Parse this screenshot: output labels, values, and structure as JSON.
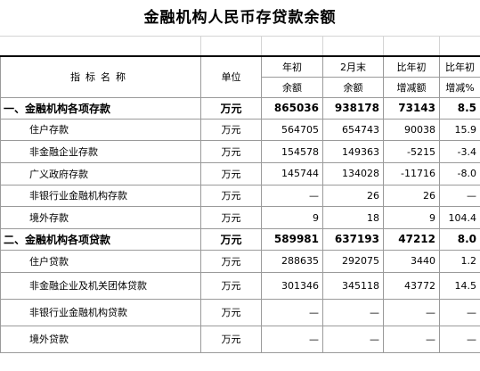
{
  "title": "金融机构人民币存贷款余额",
  "header": {
    "name": "指标名称",
    "unit": "单位",
    "col1_line1": "年初",
    "col1_line2": "余额",
    "col2_line1": "2月末",
    "col2_line2": "余额",
    "col3_line1": "比年初",
    "col3_line2": "增减额",
    "col4_line1": "比年初",
    "col4_line2": "增减%"
  },
  "rows": [
    {
      "name": "一、金融机构各项存款",
      "unit": "万元",
      "v1": "865036",
      "v2": "938178",
      "v3": "73143",
      "v4": "8.5",
      "kind": "sec"
    },
    {
      "name": "住户存款",
      "unit": "万元",
      "v1": "564705",
      "v2": "654743",
      "v3": "90038",
      "v4": "15.9",
      "kind": "sub"
    },
    {
      "name": "非金融企业存款",
      "unit": "万元",
      "v1": "154578",
      "v2": "149363",
      "v3": "-5215",
      "v4": "-3.4",
      "kind": "sub"
    },
    {
      "name": "广义政府存款",
      "unit": "万元",
      "v1": "145744",
      "v2": "134028",
      "v3": "-11716",
      "v4": "-8.0",
      "kind": "sub"
    },
    {
      "name": "非银行业金融机构存款",
      "unit": "万元",
      "v1": "—",
      "v2": "26",
      "v3": "26",
      "v4": "—",
      "kind": "sub"
    },
    {
      "name": "境外存款",
      "unit": "万元",
      "v1": "9",
      "v2": "18",
      "v3": "9",
      "v4": "104.4",
      "kind": "sub"
    },
    {
      "name": "二、金融机构各项贷款",
      "unit": "万元",
      "v1": "589981",
      "v2": "637193",
      "v3": "47212",
      "v4": "8.0",
      "kind": "sec"
    },
    {
      "name": "住户贷款",
      "unit": "万元",
      "v1": "288635",
      "v2": "292075",
      "v3": "3440",
      "v4": "1.2",
      "kind": "sub"
    },
    {
      "name": "非金融企业及机关团体贷款",
      "unit": "万元",
      "v1": "301346",
      "v2": "345118",
      "v3": "43772",
      "v4": "14.5",
      "kind": "sub"
    },
    {
      "name": "非银行业金融机构贷款",
      "unit": "万元",
      "v1": "—",
      "v2": "—",
      "v3": "—",
      "v4": "—",
      "kind": "sub"
    },
    {
      "name": "境外贷款",
      "unit": "万元",
      "v1": "—",
      "v2": "—",
      "v3": "—",
      "v4": "—",
      "kind": "sub"
    }
  ]
}
